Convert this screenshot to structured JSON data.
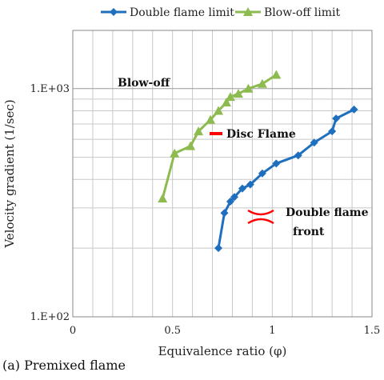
{
  "caption": "(a) Premixed flame",
  "chart_data": {
    "type": "line",
    "xlabel": "Equivalence ratio (φ)",
    "ylabel": "Velocity gradient (1/sec)",
    "xlim": [
      0,
      1.5
    ],
    "ylim": [
      100,
      1800
    ],
    "yscale": "log",
    "xticks": [
      0,
      0.5,
      1,
      1.5
    ],
    "xtick_labels": [
      "0",
      "0.5",
      "1",
      "1.5"
    ],
    "yticks": [
      100,
      1000
    ],
    "ytick_labels": [
      "1.E+02",
      "1.E+03"
    ],
    "grid": true,
    "legend_position": "top",
    "series": [
      {
        "name": "Double flame limit",
        "color": "#1f6fbf",
        "marker": "diamond",
        "x": [
          0.73,
          0.76,
          0.79,
          0.81,
          0.85,
          0.89,
          0.95,
          1.02,
          1.13,
          1.21,
          1.3,
          1.32,
          1.41
        ],
        "y": [
          200,
          285,
          320,
          335,
          365,
          380,
          425,
          470,
          510,
          580,
          650,
          740,
          810
        ]
      },
      {
        "name": "Blow-off limit",
        "color": "#8dbb4f",
        "marker": "triangle",
        "x": [
          0.45,
          0.51,
          0.59,
          0.63,
          0.69,
          0.73,
          0.77,
          0.79,
          0.83,
          0.88,
          0.95,
          1.02
        ],
        "y": [
          330,
          520,
          560,
          650,
          730,
          800,
          870,
          920,
          950,
          1000,
          1050,
          1150
        ]
      }
    ],
    "annotations": [
      {
        "id": "blowoff",
        "text": "Blow-off",
        "x": 0.23,
        "y": 1000
      },
      {
        "id": "disc",
        "text": "Disc Flame",
        "x": 0.77,
        "y": 640
      },
      {
        "id": "double1",
        "text": "Double flame",
        "x": 1.05,
        "y": 290
      },
      {
        "id": "double2",
        "text": "front",
        "x": 1.1,
        "y": 235
      }
    ]
  }
}
